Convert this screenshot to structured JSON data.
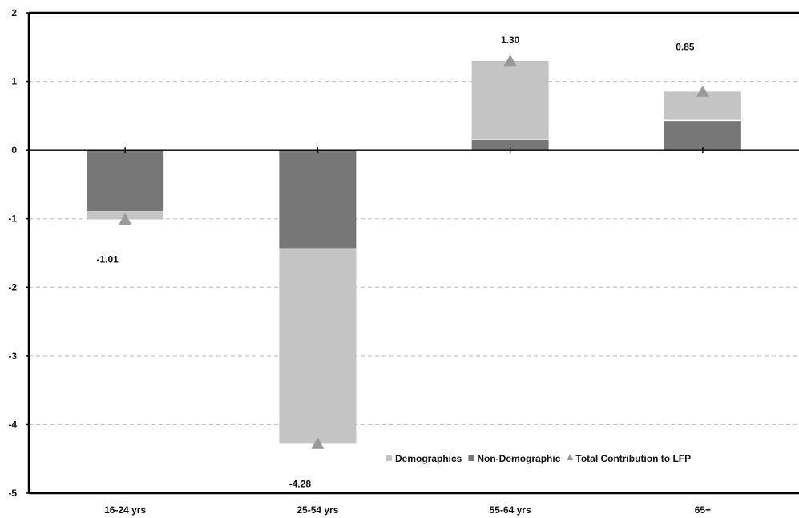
{
  "chart_data": {
    "type": "bar",
    "stacked": true,
    "categories": [
      "16-24 yrs",
      "25-54 yrs",
      "55-64 yrs",
      "65+"
    ],
    "series": [
      {
        "name": "Demographics",
        "values": [
          -0.11,
          -2.84,
          1.15,
          0.42
        ],
        "color": "#c4c4c4"
      },
      {
        "name": "Non-Demographic",
        "values": [
          -0.9,
          -1.44,
          0.15,
          0.43
        ],
        "color": "#777777"
      }
    ],
    "totals": {
      "name": "Total Contribution to LFP",
      "values": [
        -1.01,
        -4.28,
        1.3,
        0.85
      ],
      "labels": [
        "-1.01",
        "-4.28",
        "1.30",
        "0.85"
      ],
      "color": "#999999"
    },
    "ylim": [
      -5,
      2
    ],
    "yticks": [
      "2",
      "1",
      "0",
      "-1",
      "-2",
      "-3",
      "-4",
      "-5"
    ],
    "ytick_values": [
      2,
      1,
      0,
      -1,
      -2,
      -3,
      -4,
      -5
    ],
    "grid": "dashed horizontal",
    "legend_position": "bottom-right",
    "title": "",
    "xlabel": "",
    "ylabel": ""
  }
}
